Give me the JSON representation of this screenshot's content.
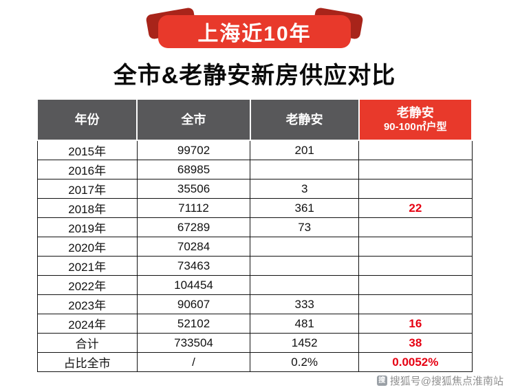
{
  "colors": {
    "accent_red": "#e8392b",
    "ribbon_fold_red": "#a8241a",
    "header_gray": "#58585a",
    "value_red": "#e60012"
  },
  "banner": {
    "title": "上海近10年"
  },
  "heading": "全市&老静安新房供应对比",
  "table": {
    "headers": {
      "year": "年份",
      "city": "全市",
      "jingan": "老静安",
      "type_line1": "老静安",
      "type_line2": "90-100㎡户型"
    },
    "rows": [
      {
        "cells": [
          "2015年",
          "99702",
          "201",
          ""
        ]
      },
      {
        "cells": [
          "2016年",
          "68985",
          "",
          ""
        ]
      },
      {
        "cells": [
          "2017年",
          "35506",
          "3",
          ""
        ]
      },
      {
        "cells": [
          "2018年",
          "71112",
          "361",
          "22"
        ]
      },
      {
        "cells": [
          "2019年",
          "67289",
          "73",
          ""
        ]
      },
      {
        "cells": [
          "2020年",
          "70284",
          "",
          ""
        ]
      },
      {
        "cells": [
          "2021年",
          "73463",
          "",
          ""
        ]
      },
      {
        "cells": [
          "2022年",
          "104454",
          "",
          ""
        ]
      },
      {
        "cells": [
          "2023年",
          "90607",
          "333",
          ""
        ]
      },
      {
        "cells": [
          "2024年",
          "52102",
          "481",
          "16"
        ]
      },
      {
        "cells": [
          "合计",
          "733504",
          "1452",
          "38"
        ]
      },
      {
        "cells": [
          "占比全市",
          "/",
          "0.2%",
          "0.0052%"
        ]
      }
    ]
  },
  "watermark": {
    "icon": "搜",
    "text": "搜狐号@搜狐焦点淮南站"
  }
}
